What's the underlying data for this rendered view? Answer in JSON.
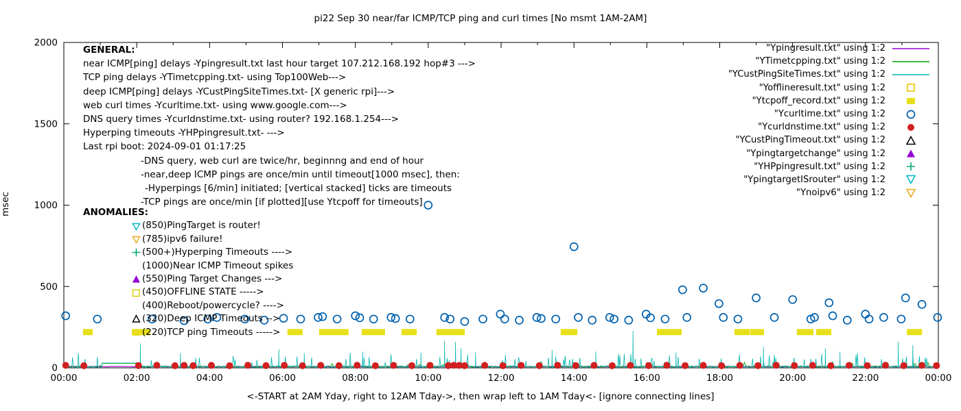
{
  "title": "pi22 Sep 30  near/far ICMP/TCP ping and curl times [No msmt 1AM-2AM]",
  "axes": {
    "ylabel": "msec",
    "xlabel": "<-START at 2AM Yday, right to 12AM Tday->, then wrap left to 1AM Tday<- [ignore connecting lines]",
    "yticks": [
      0,
      500,
      1000,
      1500,
      2000
    ],
    "xticks": [
      "00:00",
      "02:00",
      "04:00",
      "06:00",
      "08:00",
      "10:00",
      "12:00",
      "14:00",
      "16:00",
      "18:00",
      "20:00",
      "22:00",
      "00:00"
    ]
  },
  "general": {
    "heading": "GENERAL:",
    "lines": [
      {
        "indent": 0,
        "text": "near ICMP[ping] delays -Ypingresult.txt last hour target 107.212.168.192 hop#3 --->"
      },
      {
        "indent": 0,
        "text": "TCP ping delays -YTimetcpping.txt- using Top100Web--->"
      },
      {
        "indent": 0,
        "text": "deep ICMP[ping] delays -YCustPingSiteTimes.txt- [X generic rpi]--->"
      },
      {
        "indent": 0,
        "text": "web curl times -Ycurltime.txt- using www.google.com--->"
      },
      {
        "indent": 0,
        "text": "DNS query times -Ycurldnstime.txt- using router? 192.168.1.254--->"
      },
      {
        "indent": 0,
        "text": "Hyperping timeouts -YHPpingresult.txt- --->"
      },
      {
        "indent": 0,
        "text": "Last rpi boot: 2024-09-01 01:17:25"
      },
      {
        "indent": 1,
        "text": "-DNS query, web curl are twice/hr, beginnng and end of hour"
      },
      {
        "indent": 1,
        "text": "-near,deep ICMP pings are once/min until timeout[1000 msec], then:"
      },
      {
        "indent": 2,
        "text": "-Hyperpings [6/min] initiated; [vertical stacked] ticks are timeouts"
      },
      {
        "indent": 1,
        "text": "-TCP pings are once/min [if plotted][use Ytcpoff for timeouts]"
      }
    ]
  },
  "anomalies": {
    "heading": "ANOMALIES:",
    "items": [
      {
        "icon": "triangle-down-open",
        "color": "#00b5c8",
        "text": "(850)PingTarget is router!"
      },
      {
        "icon": "triangle-down-open",
        "color": "#e6a817",
        "text": "(785)ipv6 failure!"
      },
      {
        "icon": "plus",
        "color": "#00a878",
        "text": "(500+)Hyperping Timeouts ---->"
      },
      {
        "icon": "none",
        "color": "",
        "text": "(1000)Near ICMP Timeout spikes"
      },
      {
        "icon": "triangle-up-filled",
        "color": "#9400d3",
        "text": "(550)Ping Target Changes --->"
      },
      {
        "icon": "square-open",
        "color": "#d8c800",
        "text": "(450)OFFLINE STATE ----->"
      },
      {
        "icon": "none",
        "color": "",
        "text": "(400)Reboot/powercycle? ---->"
      },
      {
        "icon": "triangle-up-open",
        "color": "#000000",
        "text": "(320)Deep ICMP Timeouts -->"
      },
      {
        "icon": "square-filled",
        "color": "#e8df1b",
        "text": "(220)TCP ping Timeouts ----->"
      }
    ]
  },
  "chart_data": {
    "type": "scatter",
    "title": "pi22 Sep 30  near/far ICMP/TCP ping and curl times [No msmt 1AM-2AM]",
    "xlabel": "<-START at 2AM Yday, right to 12AM Tday->, then wrap left to 1AM Tday<- [ignore connecting lines]",
    "ylabel": "msec",
    "xlim": [
      0,
      24
    ],
    "ylim": [
      0,
      2000
    ],
    "grid": false,
    "legend_position": "top-right",
    "no_measurement_gap_hours": [
      1.05,
      2.05
    ],
    "series": [
      {
        "name": "\"Ypingresult.txt\" using 1:2",
        "kind": "line",
        "render": "flat",
        "base": 8,
        "color": "#9400d3",
        "seed": 7
      },
      {
        "name": "\"YTimetcpping.txt\" using 1:2",
        "kind": "line",
        "render": "noise-green",
        "color": "#00a000",
        "seed": 13
      },
      {
        "name": "\"YCustPingSiteTimes.txt\" using 1:2",
        "kind": "line",
        "render": "noise-teal",
        "color": "#00b5ad",
        "seed": 29,
        "spikes": [
          [
            2.1,
            150
          ],
          [
            3.2,
            90
          ],
          [
            5.9,
            115
          ],
          [
            6.6,
            90
          ],
          [
            8.2,
            100
          ],
          [
            9.8,
            95
          ],
          [
            10.45,
            165
          ],
          [
            10.75,
            160
          ],
          [
            10.9,
            120
          ],
          [
            11.3,
            95
          ],
          [
            13.4,
            110
          ],
          [
            14.6,
            100
          ],
          [
            15.62,
            228
          ],
          [
            16.8,
            95
          ],
          [
            19.2,
            130
          ],
          [
            20.9,
            120
          ],
          [
            21.3,
            100
          ],
          [
            22.9,
            160
          ],
          [
            23.3,
            140
          ]
        ]
      },
      {
        "name": "\"Yofflineresult.txt\" using 1:2",
        "kind": "square-open",
        "color": "#e6c800",
        "points": []
      },
      {
        "name": "\"Ytcpoff_record.txt\" using 1:2",
        "kind": "square-filled",
        "color": "#e8df1b",
        "value": 220,
        "ranges": [
          [
            0.62,
            0.7
          ],
          [
            1.96,
            2.28
          ],
          [
            6.23,
            6.46
          ],
          [
            7.1,
            7.72
          ],
          [
            8.27,
            8.72
          ],
          [
            9.36,
            9.59
          ],
          [
            10.32,
            10.91
          ],
          [
            13.73,
            14.0
          ],
          [
            16.37,
            16.86
          ],
          [
            18.5,
            18.73
          ],
          [
            18.93,
            19.12
          ],
          [
            20.21,
            20.48
          ],
          [
            20.74,
            20.97
          ],
          [
            23.23,
            23.46
          ]
        ]
      },
      {
        "name": "\"Ycurltime.txt\" using 1:2",
        "kind": "circle-open",
        "color": "#0060ad",
        "points": [
          [
            0.05,
            320
          ],
          [
            0.92,
            300
          ],
          [
            2.42,
            300
          ],
          [
            3.3,
            290
          ],
          [
            3.95,
            300
          ],
          [
            4.2,
            310
          ],
          [
            4.97,
            300
          ],
          [
            5.5,
            293
          ],
          [
            6.03,
            305
          ],
          [
            6.5,
            300
          ],
          [
            6.98,
            310
          ],
          [
            7.1,
            315
          ],
          [
            7.5,
            300
          ],
          [
            8.0,
            320
          ],
          [
            8.12,
            308
          ],
          [
            8.5,
            300
          ],
          [
            8.98,
            310
          ],
          [
            9.1,
            303
          ],
          [
            9.5,
            300
          ],
          [
            10.0,
            1000
          ],
          [
            10.45,
            310
          ],
          [
            10.6,
            300
          ],
          [
            11.0,
            285
          ],
          [
            11.5,
            300
          ],
          [
            11.98,
            330
          ],
          [
            12.1,
            300
          ],
          [
            12.5,
            293
          ],
          [
            12.98,
            310
          ],
          [
            13.1,
            303
          ],
          [
            13.5,
            300
          ],
          [
            14.0,
            745
          ],
          [
            14.12,
            310
          ],
          [
            14.5,
            293
          ],
          [
            14.98,
            310
          ],
          [
            15.1,
            300
          ],
          [
            15.5,
            293
          ],
          [
            15.98,
            330
          ],
          [
            16.1,
            308
          ],
          [
            16.5,
            300
          ],
          [
            16.98,
            480
          ],
          [
            17.1,
            310
          ],
          [
            17.55,
            490
          ],
          [
            17.98,
            395
          ],
          [
            18.1,
            310
          ],
          [
            18.5,
            300
          ],
          [
            19.0,
            430
          ],
          [
            19.5,
            310
          ],
          [
            20.0,
            420
          ],
          [
            20.5,
            300
          ],
          [
            20.6,
            310
          ],
          [
            21.0,
            400
          ],
          [
            21.1,
            320
          ],
          [
            21.5,
            293
          ],
          [
            22.0,
            330
          ],
          [
            22.1,
            300
          ],
          [
            22.5,
            310
          ],
          [
            22.98,
            300
          ],
          [
            23.1,
            430
          ],
          [
            23.55,
            390
          ],
          [
            23.98,
            310
          ]
        ]
      },
      {
        "name": "\"Ycurldnstime.txt\" using 1:2",
        "kind": "circle-filled",
        "color": "#d21f1f",
        "points": [
          [
            0.05,
            15
          ],
          [
            0.55,
            13
          ],
          [
            2.05,
            14
          ],
          [
            2.55,
            16
          ],
          [
            3.05,
            13
          ],
          [
            3.3,
            15
          ],
          [
            3.55,
            14
          ],
          [
            4.05,
            15
          ],
          [
            4.55,
            13
          ],
          [
            5.05,
            16
          ],
          [
            5.55,
            14
          ],
          [
            6.05,
            15
          ],
          [
            6.55,
            13
          ],
          [
            7.05,
            15
          ],
          [
            7.55,
            14
          ],
          [
            8.05,
            16
          ],
          [
            8.55,
            13
          ],
          [
            9.05,
            15
          ],
          [
            9.55,
            14
          ],
          [
            10.05,
            15
          ],
          [
            10.55,
            14
          ],
          [
            10.7,
            16
          ],
          [
            10.85,
            15
          ],
          [
            11.0,
            14
          ],
          [
            11.55,
            15
          ],
          [
            12.05,
            13
          ],
          [
            12.55,
            15
          ],
          [
            13.05,
            14
          ],
          [
            13.55,
            16
          ],
          [
            14.05,
            14
          ],
          [
            14.55,
            15
          ],
          [
            15.05,
            13
          ],
          [
            15.55,
            15
          ],
          [
            16.05,
            14
          ],
          [
            16.55,
            16
          ],
          [
            17.05,
            14
          ],
          [
            17.55,
            15
          ],
          [
            18.05,
            13
          ],
          [
            18.55,
            15
          ],
          [
            19.05,
            14
          ],
          [
            19.55,
            16
          ],
          [
            20.05,
            14
          ],
          [
            20.55,
            15
          ],
          [
            21.05,
            13
          ],
          [
            21.55,
            15
          ],
          [
            22.05,
            14
          ],
          [
            22.55,
            16
          ],
          [
            23.05,
            14
          ],
          [
            23.55,
            15
          ],
          [
            23.95,
            14
          ]
        ]
      },
      {
        "name": "\"YCustPingTimeout.txt\" using 1:2",
        "kind": "triangle-up-open",
        "color": "#000000",
        "points": []
      },
      {
        "name": "\"Ypingtargetchange\" using 1:2",
        "kind": "triangle-up-filled",
        "color": "#9400d3",
        "points": []
      },
      {
        "name": "\"YHPpingresult.txt\" using 1:2",
        "kind": "plus",
        "color": "#00a878",
        "points": []
      },
      {
        "name": "\"YpingtargetISrouter\" using 1:2",
        "kind": "triangle-down-open",
        "color": "#00b5c8",
        "points": []
      },
      {
        "name": "\"Ynoipv6\" using 1:2",
        "kind": "triangle-down-open",
        "color": "#e6a817",
        "points": []
      }
    ]
  },
  "colors": {
    "background": "#ffffff",
    "axis": "#000000",
    "blue": "#0060ad",
    "red": "#d21f1f",
    "yellow": "#e8df1b",
    "teal": "#00b5ad",
    "green": "#00a000",
    "purple": "#9400d3",
    "cyan": "#00b5c8",
    "orange": "#e6a817"
  }
}
